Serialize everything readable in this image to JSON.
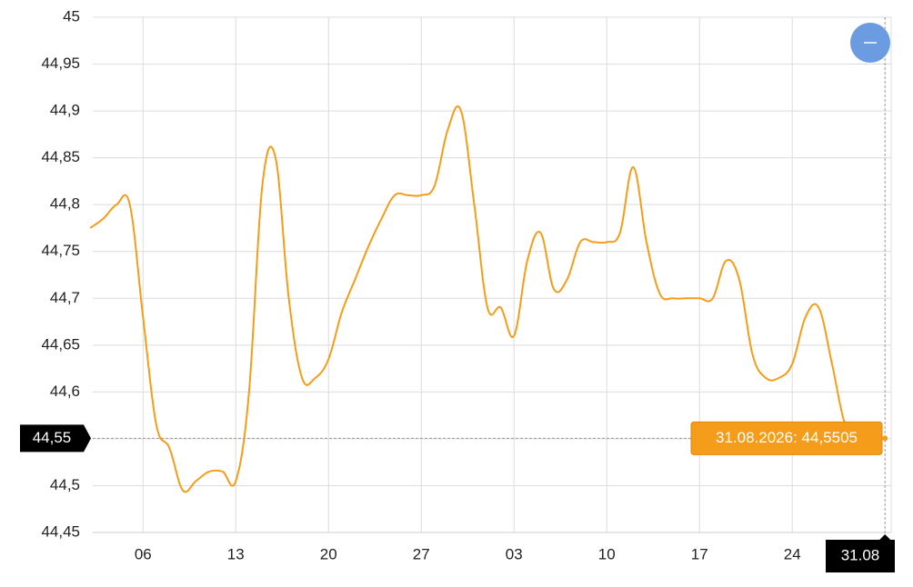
{
  "chart_data": {
    "type": "line",
    "categories": [
      null,
      null,
      null,
      null,
      "06",
      null,
      null,
      null,
      null,
      null,
      null,
      "13",
      null,
      null,
      null,
      null,
      null,
      null,
      "20",
      null,
      null,
      null,
      null,
      null,
      null,
      "27",
      null,
      null,
      null,
      null,
      null,
      null,
      "03",
      null,
      null,
      null,
      null,
      null,
      null,
      "10",
      null,
      null,
      null,
      null,
      null,
      null,
      "17",
      null,
      null,
      null,
      null,
      null,
      null,
      "24",
      null,
      null,
      null,
      null,
      null,
      null,
      null
    ],
    "series": [
      {
        "color": "#f59c1a",
        "values": [
          44.775,
          44.785,
          44.8,
          44.8,
          44.68,
          44.565,
          44.54,
          44.495,
          44.505,
          44.515,
          44.515,
          44.505,
          44.6,
          44.82,
          44.85,
          44.7,
          44.615,
          44.615,
          44.635,
          44.685,
          44.72,
          44.755,
          44.785,
          44.81,
          44.81,
          44.81,
          44.82,
          44.88,
          44.9,
          44.8,
          44.69,
          44.69,
          44.66,
          44.74,
          44.77,
          44.71,
          44.72,
          44.76,
          44.76,
          44.76,
          44.77,
          44.84,
          44.76,
          44.705,
          44.7,
          44.7,
          44.7,
          44.7,
          44.74,
          44.72,
          44.64,
          44.615,
          44.615,
          44.63,
          44.68,
          44.69,
          44.63,
          44.565,
          44.555,
          44.553,
          44.5505
        ]
      }
    ],
    "ylim": [
      44.45,
      45
    ],
    "yticks": [
      {
        "value": 44.45,
        "label": "44,45"
      },
      {
        "value": 44.5,
        "label": "44,5"
      },
      {
        "value": 44.55,
        "label": "44,55"
      },
      {
        "value": 44.6,
        "label": "44,6"
      },
      {
        "value": 44.65,
        "label": "44,65"
      },
      {
        "value": 44.7,
        "label": "44,7"
      },
      {
        "value": 44.75,
        "label": "44,75"
      },
      {
        "value": 44.8,
        "label": "44,8"
      },
      {
        "value": 44.85,
        "label": "44,85"
      },
      {
        "value": 44.9,
        "label": "44,9"
      },
      {
        "value": 44.95,
        "label": "44,95"
      },
      45
    ],
    "grid": true,
    "crosshair": {
      "y_label": "44,55",
      "x_label": "31.08",
      "tooltip": "31.08.2026: 44,5505"
    }
  }
}
